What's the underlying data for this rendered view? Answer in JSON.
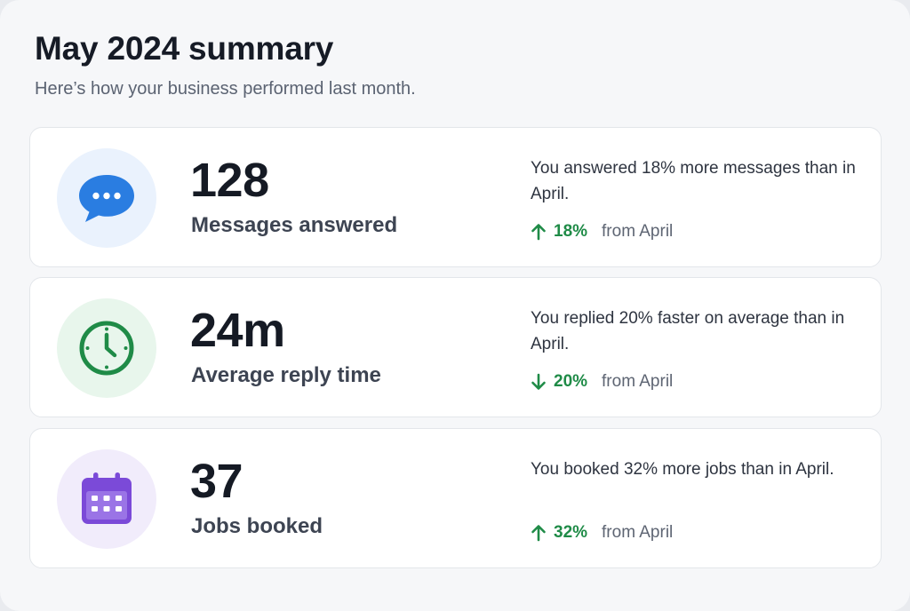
{
  "header": {
    "title": "May 2024 summary",
    "subtitle": "Here’s how your business performed last month."
  },
  "cards": [
    {
      "value": "128",
      "label": "Messages answered",
      "description": "You answered 18% more messages than in April.",
      "change_direction": "up",
      "change_value": "18%",
      "change_suffix": "from April",
      "icon": "chat-bubble-icon",
      "icon_color": "#2a7de1",
      "icon_bg": "#eaf2fd"
    },
    {
      "value": "24m",
      "label": "Average reply time",
      "description": "You replied 20% faster on average than in April.",
      "change_direction": "down",
      "change_value": "20%",
      "change_suffix": "from April",
      "icon": "clock-icon",
      "icon_color": "#1f8b47",
      "icon_bg": "#e8f6ec"
    },
    {
      "value": "37",
      "label": "Jobs booked",
      "description": "You booked 32% more jobs than in April.",
      "change_direction": "up",
      "change_value": "32%",
      "change_suffix": "from April",
      "icon": "calendar-icon",
      "icon_color": "#7b4ad8",
      "icon_bg": "#f1ecfb"
    }
  ],
  "colors": {
    "positive": "#1f8b47",
    "text_primary": "#161b26",
    "text_secondary": "#5b6372"
  }
}
